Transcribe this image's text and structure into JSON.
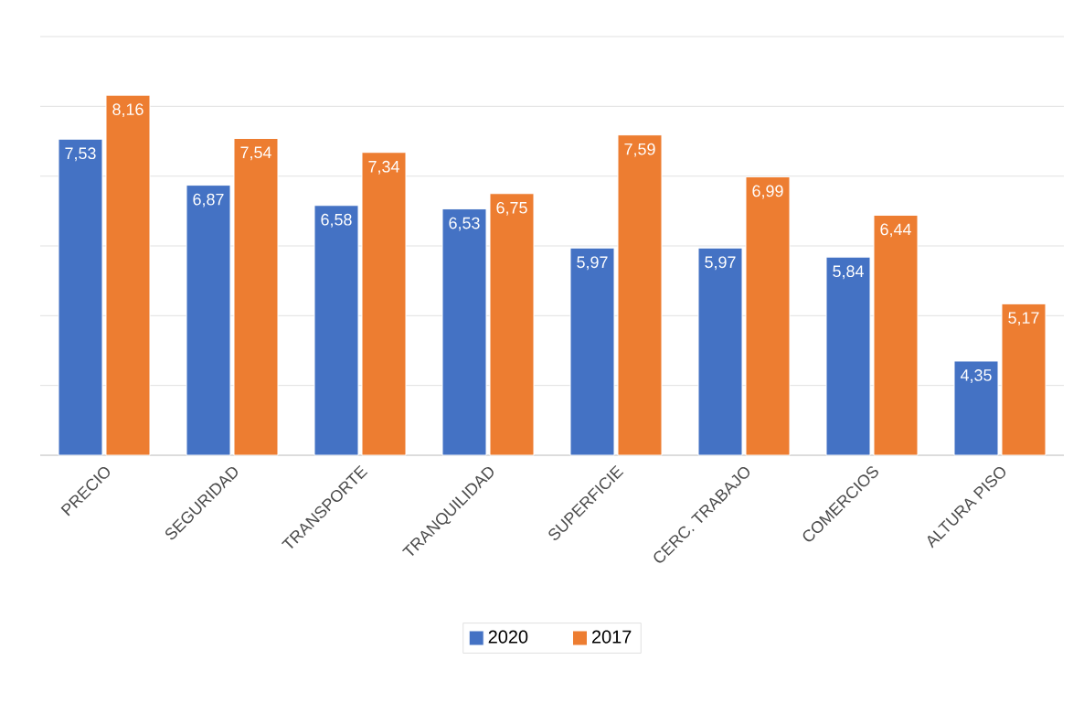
{
  "chart_data": {
    "type": "bar",
    "categories": [
      "PRECIO",
      "SEGURIDAD",
      "TRANSPORTE",
      "TRANQUILIDAD",
      "SUPERFICIE",
      "CERC. TRABAJO",
      "COMERCIOS",
      "ALTURA PISO"
    ],
    "series": [
      {
        "name": "2020",
        "color": "#4472c4",
        "values": [
          7.53,
          6.87,
          6.58,
          6.53,
          5.97,
          5.97,
          5.84,
          4.35
        ],
        "value_labels": [
          "7,53",
          "6,87",
          "6,58",
          "6,53",
          "5,97",
          "5,97",
          "5,84",
          "4,35"
        ]
      },
      {
        "name": "2017",
        "color": "#ed7d31",
        "values": [
          8.16,
          7.54,
          7.34,
          6.75,
          7.59,
          6.99,
          6.44,
          5.17
        ],
        "value_labels": [
          "8,16",
          "7,54",
          "7,34",
          "6,75",
          "7,59",
          "6,99",
          "6,44",
          "5,17"
        ]
      }
    ],
    "ylim": [
      3,
      9
    ],
    "tick_labels": "x",
    "grid": "y",
    "legend": "bottom"
  }
}
